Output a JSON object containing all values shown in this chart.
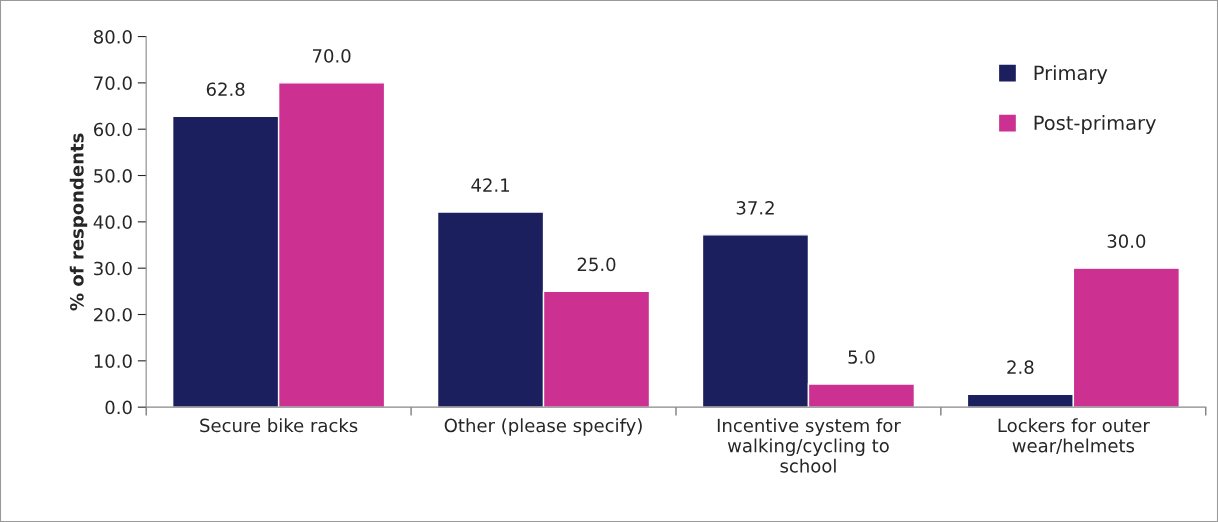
{
  "chart_data": {
    "type": "bar",
    "ylabel": "% of respondents",
    "categories": [
      "Secure bike racks",
      "Other (please specify)",
      "Incentive system for\nwalking/cycling to\nschool",
      "Lockers for outer\nwear/helmets"
    ],
    "series": [
      {
        "name": "Primary",
        "color": "#1c1f5e",
        "values": [
          62.8,
          42.1,
          37.2,
          2.8
        ],
        "value_labels": [
          "62.8",
          "42.1",
          "37.2",
          "2.8"
        ]
      },
      {
        "name": "Post-primary",
        "color": "#cc3192",
        "values": [
          70.0,
          25.0,
          5.0,
          30.0
        ],
        "value_labels": [
          "70.0",
          "25.0",
          "5.0",
          "30.0"
        ]
      }
    ],
    "ylim": [
      0,
      80
    ],
    "yticks": [
      {
        "value": 0,
        "label": "0.0"
      },
      {
        "value": 10,
        "label": "10.0"
      },
      {
        "value": 20,
        "label": "20.0"
      },
      {
        "value": 30,
        "label": "30.0"
      },
      {
        "value": 40,
        "label": "40.0"
      },
      {
        "value": 50,
        "label": "50.0"
      },
      {
        "value": 60,
        "label": "60.0"
      },
      {
        "value": 70,
        "label": "70.0"
      },
      {
        "value": 80,
        "label": "80.0"
      }
    ],
    "grid": false,
    "legend": "top right"
  }
}
